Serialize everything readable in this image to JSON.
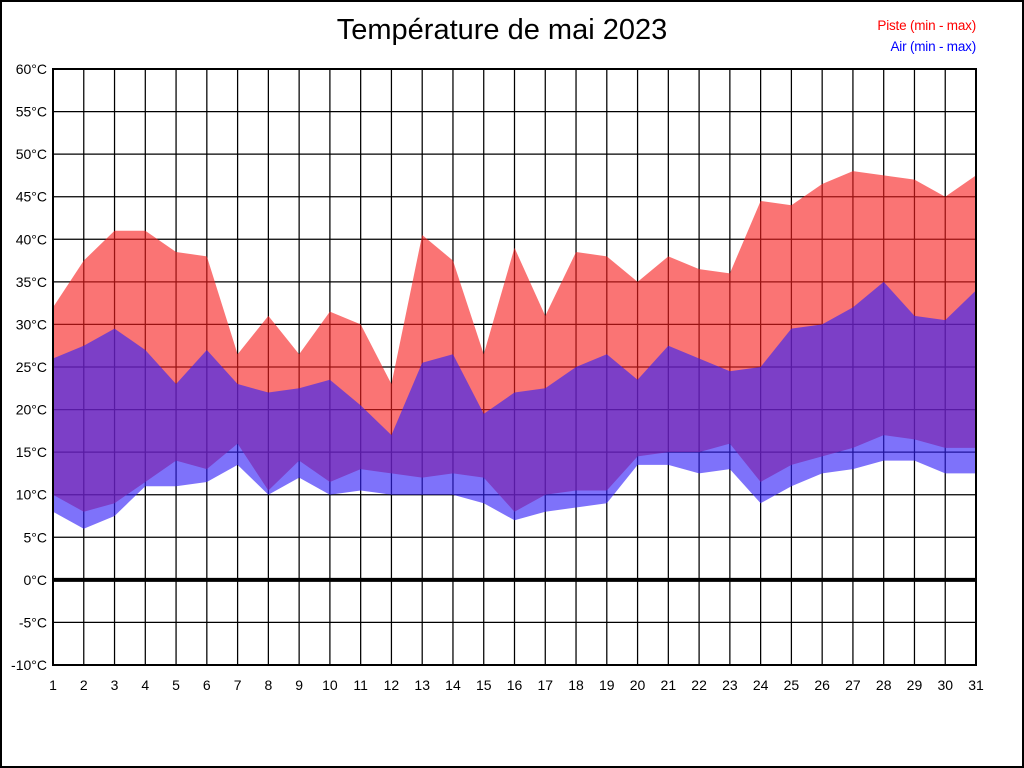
{
  "title": "Température de mai 2023",
  "legend": {
    "items": [
      {
        "id": "piste",
        "label": "Piste (min - max)",
        "color": "#ff0000"
      },
      {
        "id": "air",
        "label": "Air (min - max)",
        "color": "#0000ff"
      }
    ]
  },
  "chart_data": {
    "type": "area",
    "title": "Température de mai 2023",
    "xlabel": "",
    "ylabel": "",
    "x": [
      1,
      2,
      3,
      4,
      5,
      6,
      7,
      8,
      9,
      10,
      11,
      12,
      13,
      14,
      15,
      16,
      17,
      18,
      19,
      20,
      21,
      22,
      23,
      24,
      25,
      26,
      27,
      28,
      29,
      30,
      31
    ],
    "ylim": [
      -10,
      60
    ],
    "y_unit": "°C",
    "grid": true,
    "zero_line_value": 0,
    "y_ticks": [
      {
        "value": 60,
        "label": "60°C"
      },
      {
        "value": 55,
        "label": "55°C"
      },
      {
        "value": 50,
        "label": "50°C"
      },
      {
        "value": 45,
        "label": "45°C"
      },
      {
        "value": 40,
        "label": "40°C"
      },
      {
        "value": 35,
        "label": "35°C"
      },
      {
        "value": 30,
        "label": "30°C"
      },
      {
        "value": 25,
        "label": "25°C"
      },
      {
        "value": 20,
        "label": "20°C"
      },
      {
        "value": 15,
        "label": "15°C"
      },
      {
        "value": 10,
        "label": "10°C"
      },
      {
        "value": 5,
        "label": "5°C"
      },
      {
        "value": 0,
        "label": "0°C"
      },
      {
        "value": -5,
        "label": "-5°C"
      },
      {
        "value": -10,
        "label": "-10°C"
      }
    ],
    "series": [
      {
        "id": "piste",
        "name": "Piste (min - max)",
        "legend_color": "#ff0000",
        "fill": "rgba(247,30,30,0.62)",
        "max": [
          32,
          37.5,
          41,
          41,
          38.5,
          38,
          26.5,
          31,
          26.5,
          31.5,
          30,
          23,
          40.5,
          37.5,
          26.5,
          39,
          31,
          38.5,
          38,
          35,
          38,
          36.5,
          36,
          44.5,
          44,
          46.5,
          48,
          47.5,
          47,
          45,
          47.5
        ],
        "min": [
          10,
          8,
          9,
          11.5,
          14,
          13,
          16,
          10.5,
          14,
          11.5,
          13,
          12.5,
          12,
          12.5,
          12,
          8,
          10,
          10.5,
          10.5,
          14.5,
          15,
          15,
          16,
          11.5,
          13.5,
          14.5,
          15.5,
          17,
          16.5,
          15.5,
          15.5
        ]
      },
      {
        "id": "air",
        "name": "Air (min - max)",
        "legend_color": "#0000ff",
        "fill": "rgba(50,32,247,0.63)",
        "max": [
          26,
          27.5,
          29.5,
          27,
          23,
          27,
          23,
          22,
          22.5,
          23.5,
          20.5,
          17,
          25.5,
          26.5,
          19.5,
          22,
          22.5,
          25,
          26.5,
          23.5,
          27.5,
          26,
          24.5,
          25,
          29.5,
          30,
          32,
          35,
          31,
          30.5,
          34
        ],
        "min": [
          8,
          6,
          7.5,
          11,
          11,
          11.5,
          13.5,
          10,
          12,
          10,
          10.5,
          10,
          10,
          10,
          9,
          7,
          8,
          8.5,
          9,
          13.5,
          13.5,
          12.5,
          13,
          9,
          11,
          12.5,
          13,
          14,
          14,
          12.5,
          12.5
        ]
      }
    ],
    "colors": {
      "grid": "#000000",
      "border": "#000000",
      "background": "#ffffff"
    }
  }
}
